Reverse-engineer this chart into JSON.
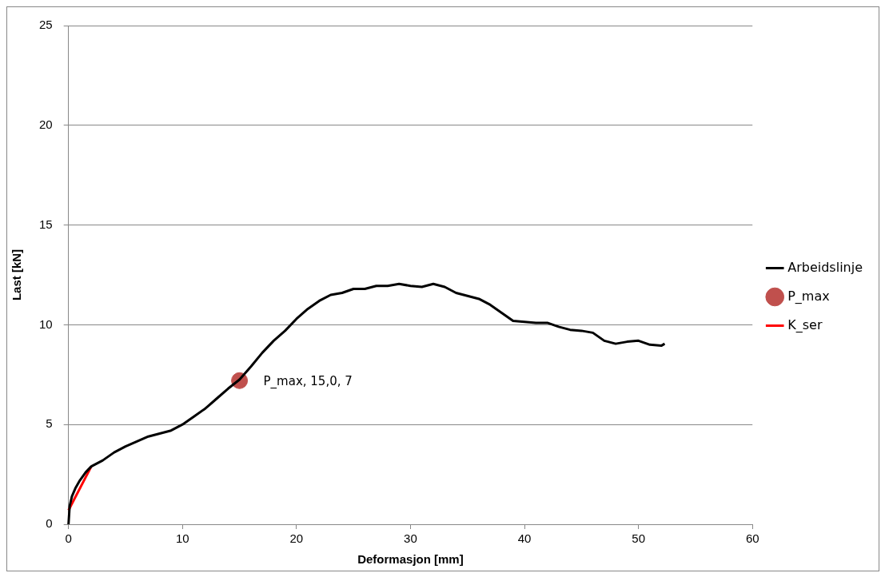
{
  "chart_data": {
    "type": "line",
    "xlabel": "Deformasjon [mm]",
    "ylabel": "Last [kN]",
    "xlim": [
      0,
      60
    ],
    "xticks": [
      0,
      10,
      20,
      30,
      40,
      50,
      60
    ],
    "ylim": [
      0,
      25
    ],
    "yticks": [
      0,
      5,
      10,
      15,
      20,
      25
    ],
    "grid": "y",
    "legend": "right",
    "marker": "none",
    "line_style": "solid",
    "series": [
      {
        "name": "Arbeidslinje",
        "color": "#000000",
        "x": [
          0,
          0.1,
          0.3,
          0.6,
          1,
          1.5,
          2,
          3,
          4,
          5,
          6,
          7,
          8,
          9,
          10,
          11,
          12,
          13,
          14,
          15,
          16,
          17,
          18,
          19,
          20,
          21,
          22,
          23,
          24,
          25,
          26,
          27,
          28,
          29,
          30,
          31,
          32,
          33,
          34,
          35,
          36,
          37,
          38,
          39,
          40,
          41,
          42,
          43,
          44,
          45,
          46,
          47,
          48,
          49,
          50,
          51,
          52,
          52.3
        ],
        "values": [
          0,
          0.9,
          1.4,
          1.8,
          2.2,
          2.6,
          2.9,
          3.2,
          3.6,
          3.9,
          4.15,
          4.4,
          4.55,
          4.7,
          5.0,
          5.4,
          5.8,
          6.3,
          6.8,
          7.25,
          7.9,
          8.6,
          9.2,
          9.7,
          10.3,
          10.8,
          11.2,
          11.5,
          11.6,
          11.8,
          11.8,
          11.95,
          11.95,
          12.05,
          11.95,
          11.9,
          12.05,
          11.9,
          11.6,
          11.45,
          11.3,
          11.0,
          10.6,
          10.2,
          10.15,
          10.1,
          10.1,
          9.9,
          9.75,
          9.7,
          9.6,
          9.2,
          9.05,
          9.15,
          9.2,
          9.0,
          8.95,
          9.05
        ]
      },
      {
        "name": "P_max",
        "type": "scatter",
        "marker": "circle",
        "color": "#c0504d",
        "x": [
          15.0
        ],
        "values": [
          7.2
        ],
        "value_labels": [
          "P_max, 15,0, 7"
        ]
      },
      {
        "name": "K_ser",
        "color": "#ff0000",
        "x": [
          0,
          2
        ],
        "values": [
          0.7,
          2.9
        ]
      }
    ]
  }
}
